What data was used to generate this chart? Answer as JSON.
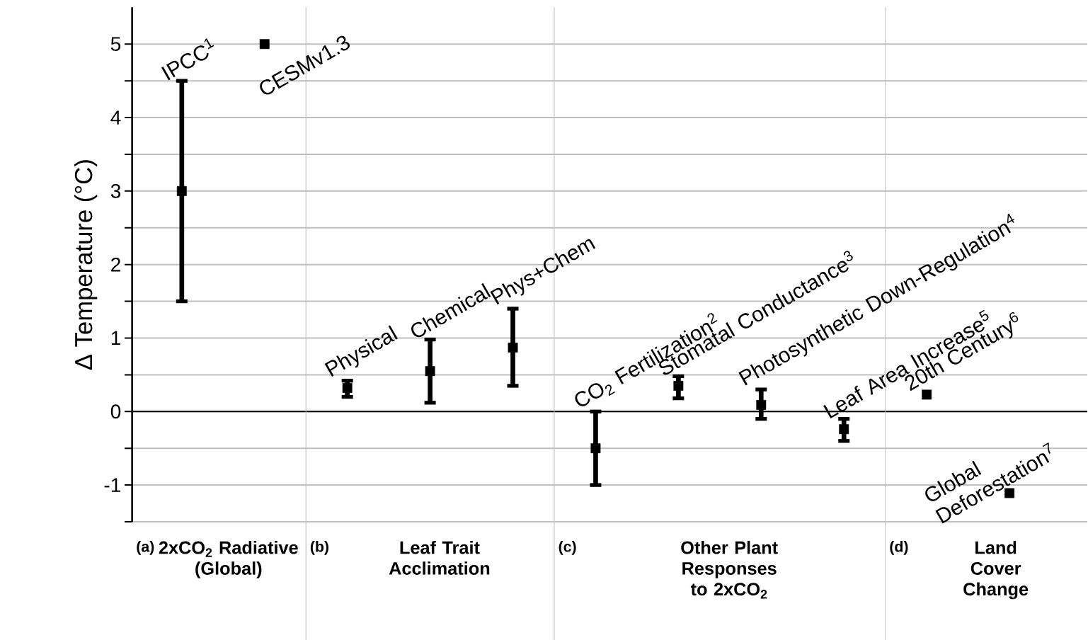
{
  "chart_data": {
    "type": "scatter",
    "categories": [
      null,
      null,
      null,
      null,
      null,
      null,
      null,
      null,
      null,
      null,
      null
    ],
    "series": [
      {
        "color": "#000000",
        "values": [
          3.0,
          5.0,
          0.32,
          0.55,
          0.87,
          -0.5,
          0.35,
          0.09,
          -0.24,
          0.23,
          -1.11
        ],
        "errors": [
          [
            1.5,
            4.5
          ],
          null,
          [
            0.2,
            0.42
          ],
          [
            0.12,
            0.98
          ],
          [
            0.35,
            1.4
          ],
          [
            -1.0,
            0.0
          ],
          [
            0.18,
            0.48
          ],
          [
            -0.1,
            0.3
          ],
          [
            -0.4,
            -0.1
          ],
          null,
          null
        ]
      }
    ],
    "ylabel": "Δ Temperature (°C)",
    "ylim": [
      -1.5,
      5.5
    ],
    "yticks": [
      {
        "value": -1.5,
        "label": null
      },
      -1,
      {
        "value": -0.5,
        "label": null
      },
      0,
      {
        "value": 0.5,
        "label": null
      },
      1,
      {
        "value": 1.5,
        "label": null
      },
      2,
      {
        "value": 2.5,
        "label": null
      },
      3,
      {
        "value": 3.5,
        "label": null
      },
      4,
      {
        "value": 4.5,
        "label": null
      },
      5
    ],
    "grid": "y",
    "marker": "square",
    "tick_labels": "y",
    "annotations": [
      "IPCC$^{1}$",
      "CESMv1.3",
      "Physical",
      "Chemical",
      "Phys+Chem",
      "CO$_{2}$ Fertilization$^{2}$",
      "Stomatal Conductance$^{3}$",
      "Photosynthetic Down-Regulation$^{4}$",
      "Leaf Area Increase$^{5}$",
      "20th Century$^{6}$",
      "Global Deforestation$^{7}$",
      "(a)",
      "2xCO$_{2}$ Radiative (Global)",
      "(b)",
      "Leaf Trait Acclimation",
      "(c)",
      "Other Plant Responses to 2xCO$_{2}$",
      "(d)",
      "Land Cover Change"
    ]
  }
}
